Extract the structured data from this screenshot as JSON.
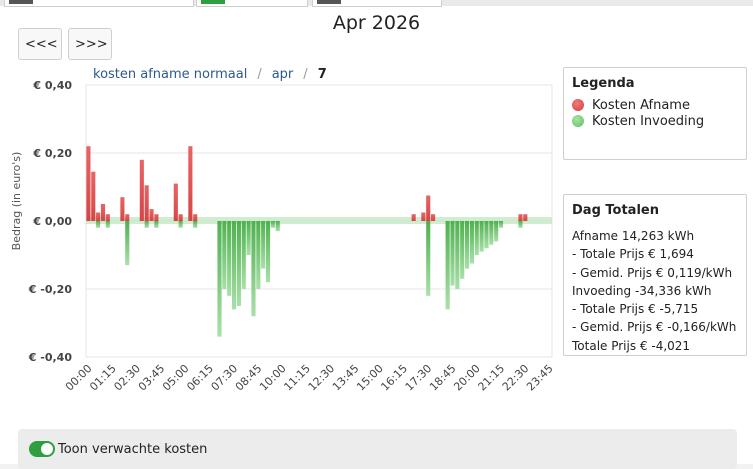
{
  "header": {
    "title": "Apr 2026",
    "prev_label": "<<<",
    "next_label": ">>>"
  },
  "breadcrumb": {
    "item1": "kosten afname normaal",
    "item2": "apr",
    "current": "7",
    "separator": "/"
  },
  "legend": {
    "title": "Legenda",
    "items": [
      {
        "label": "Kosten Afname",
        "color": "#e05a5a"
      },
      {
        "label": "Kosten Invoeding",
        "color": "#7ccf7c"
      }
    ]
  },
  "totals": {
    "title": "Dag Totalen",
    "lines": [
      "Afname 14,263 kWh",
      "- Totale Prijs € 1,694",
      "- Gemid. Prijs € 0,119/kWh",
      "Invoeding -34,336 kWh",
      "- Totale Prijs € -5,715",
      "- Gemid. Prijs € -0,166/kWh",
      "Totale Prijs € -4,021"
    ]
  },
  "toggle": {
    "label": "Toon verwachte kosten",
    "checked": true
  },
  "chart_data": {
    "type": "bar",
    "ylabel": "Bedrag (in euro's)",
    "ylim": [
      -0.4,
      0.4
    ],
    "yticks": [
      "€ 0,40",
      "€ 0,20",
      "€ 0,00",
      "€ -0,20",
      "€ -0,40"
    ],
    "xtick_labels": [
      "00:00",
      "01:15",
      "02:30",
      "03:45",
      "05:00",
      "06:15",
      "07:30",
      "08:45",
      "10:00",
      "11:15",
      "12:30",
      "13:45",
      "15:00",
      "16:15",
      "17:30",
      "18:45",
      "20:00",
      "21:15",
      "22:30",
      "23:45"
    ],
    "categories_note": "96 quarter-hour slots 00:00 - 23:45",
    "series": [
      {
        "name": "Kosten Afname",
        "color": "#e05a5a",
        "values": [
          0.22,
          0.145,
          0.025,
          0.05,
          0.02,
          0,
          0,
          0.07,
          0.02,
          0,
          0,
          0.18,
          0.105,
          0.035,
          0.02,
          0,
          0,
          0,
          0.11,
          0.02,
          0,
          0.22,
          0.02,
          0,
          0,
          0,
          0,
          0,
          0,
          0,
          0,
          0,
          0,
          0,
          0,
          0,
          0,
          0,
          0,
          0,
          0,
          0,
          0,
          0,
          0,
          0,
          0,
          0,
          0,
          0,
          0,
          0,
          0,
          0,
          0,
          0,
          0,
          0,
          0,
          0,
          0,
          0,
          0,
          0,
          0,
          0,
          0,
          0.02,
          0,
          0.025,
          0.075,
          0.02,
          0,
          0,
          0,
          0,
          0,
          0,
          0,
          0,
          0,
          0,
          0,
          0,
          0,
          0,
          0,
          0,
          0,
          0.02,
          0.02,
          0,
          0,
          0,
          0,
          0
        ]
      },
      {
        "name": "Kosten Invoeding",
        "color": "#6fc46f",
        "values": [
          0,
          0,
          -0.02,
          0,
          -0.02,
          0,
          0,
          0,
          -0.13,
          0,
          0,
          0,
          -0.02,
          0,
          -0.02,
          0,
          0,
          0,
          0,
          -0.02,
          0,
          0,
          -0.02,
          0,
          0,
          0,
          0,
          -0.34,
          -0.2,
          -0.22,
          -0.26,
          -0.25,
          -0.2,
          -0.1,
          -0.28,
          -0.2,
          -0.14,
          -0.18,
          -0.02,
          -0.03,
          0,
          0,
          0,
          0,
          0,
          0,
          0,
          0,
          0,
          0,
          0,
          0,
          0,
          0,
          0,
          0,
          0,
          0,
          0,
          0,
          0,
          0,
          0,
          0,
          0,
          0,
          0,
          0,
          0,
          0,
          -0.22,
          0,
          0,
          0,
          -0.26,
          -0.19,
          -0.2,
          -0.17,
          -0.14,
          -0.125,
          -0.1,
          -0.09,
          -0.08,
          -0.07,
          -0.06,
          -0.02,
          0,
          0,
          0,
          -0.02,
          0,
          0,
          0,
          0,
          0,
          0
        ]
      }
    ],
    "grid": true,
    "legend_position": "right"
  }
}
